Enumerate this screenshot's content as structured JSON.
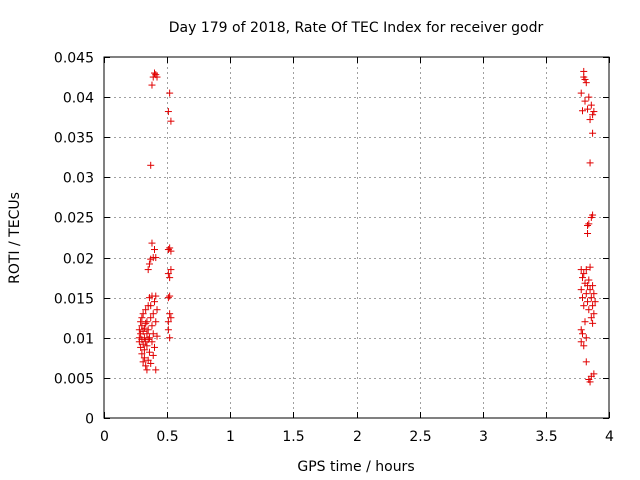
{
  "chart_data": {
    "type": "scatter",
    "title": "Day 179 of 2018, Rate Of TEC Index for receiver godr",
    "xlabel": "GPS time / hours",
    "ylabel": "ROTI / TECUs",
    "xlim": [
      0,
      4
    ],
    "ylim": [
      0,
      0.045
    ],
    "xticks": [
      0,
      0.5,
      1,
      1.5,
      2,
      2.5,
      3,
      3.5,
      4
    ],
    "xtick_labels": [
      "0",
      "0.5",
      "1",
      "1.5",
      "2",
      "2.5",
      "3",
      "3.5",
      "4"
    ],
    "yticks": [
      0,
      0.005,
      0.01,
      0.015,
      0.02,
      0.025,
      0.03,
      0.035,
      0.04,
      0.045
    ],
    "ytick_labels": [
      "0",
      "0.005",
      "0.01",
      "0.015",
      "0.02",
      "0.025",
      "0.03",
      "0.035",
      "0.04",
      "0.045"
    ],
    "grid": true,
    "marker": "+",
    "color": "#e00000",
    "series": [
      {
        "points": [
          [
            0.28,
            0.01
          ],
          [
            0.28,
            0.011
          ],
          [
            0.28,
            0.0095
          ],
          [
            0.29,
            0.012
          ],
          [
            0.29,
            0.0105
          ],
          [
            0.29,
            0.0088
          ],
          [
            0.3,
            0.0115
          ],
          [
            0.3,
            0.0098
          ],
          [
            0.3,
            0.008
          ],
          [
            0.3,
            0.0125
          ],
          [
            0.31,
            0.0108
          ],
          [
            0.31,
            0.0092
          ],
          [
            0.31,
            0.007
          ],
          [
            0.31,
            0.013
          ],
          [
            0.32,
            0.0112
          ],
          [
            0.32,
            0.01
          ],
          [
            0.32,
            0.0085
          ],
          [
            0.32,
            0.0075
          ],
          [
            0.33,
            0.0118
          ],
          [
            0.33,
            0.0135
          ],
          [
            0.33,
            0.0095
          ],
          [
            0.33,
            0.0065
          ],
          [
            0.34,
            0.0105
          ],
          [
            0.34,
            0.012
          ],
          [
            0.34,
            0.009
          ],
          [
            0.34,
            0.006
          ],
          [
            0.35,
            0.011
          ],
          [
            0.35,
            0.014
          ],
          [
            0.35,
            0.0098
          ],
          [
            0.35,
            0.0072
          ],
          [
            0.35,
            0.0185
          ],
          [
            0.36,
            0.015
          ],
          [
            0.36,
            0.01
          ],
          [
            0.36,
            0.0082
          ],
          [
            0.36,
            0.0192
          ],
          [
            0.37,
            0.0125
          ],
          [
            0.37,
            0.014
          ],
          [
            0.37,
            0.0068
          ],
          [
            0.37,
            0.0198
          ],
          [
            0.37,
            0.0315
          ],
          [
            0.38,
            0.0115
          ],
          [
            0.38,
            0.0152
          ],
          [
            0.38,
            0.0095
          ],
          [
            0.38,
            0.0218
          ],
          [
            0.38,
            0.0415
          ],
          [
            0.39,
            0.013
          ],
          [
            0.39,
            0.0105
          ],
          [
            0.39,
            0.0078
          ],
          [
            0.39,
            0.02
          ],
          [
            0.39,
            0.0425
          ],
          [
            0.4,
            0.0145
          ],
          [
            0.4,
            0.0088
          ],
          [
            0.4,
            0.021
          ],
          [
            0.4,
            0.043
          ],
          [
            0.41,
            0.012
          ],
          [
            0.41,
            0.006
          ],
          [
            0.41,
            0.0152
          ],
          [
            0.41,
            0.02
          ],
          [
            0.41,
            0.0428
          ],
          [
            0.42,
            0.0135
          ],
          [
            0.42,
            0.0102
          ],
          [
            0.42,
            0.0425
          ],
          [
            0.51,
            0.021
          ],
          [
            0.51,
            0.018
          ],
          [
            0.51,
            0.015
          ],
          [
            0.51,
            0.012
          ],
          [
            0.51,
            0.011
          ],
          [
            0.51,
            0.0382
          ],
          [
            0.52,
            0.0212
          ],
          [
            0.52,
            0.0175
          ],
          [
            0.52,
            0.0152
          ],
          [
            0.52,
            0.013
          ],
          [
            0.52,
            0.01
          ],
          [
            0.52,
            0.0405
          ],
          [
            0.53,
            0.0208
          ],
          [
            0.53,
            0.0185
          ],
          [
            0.53,
            0.0125
          ],
          [
            0.53,
            0.037
          ],
          [
            3.78,
            0.0185
          ],
          [
            3.78,
            0.016
          ],
          [
            3.78,
            0.011
          ],
          [
            3.78,
            0.0095
          ],
          [
            3.78,
            0.0405
          ],
          [
            3.79,
            0.015
          ],
          [
            3.79,
            0.0175
          ],
          [
            3.79,
            0.0105
          ],
          [
            3.79,
            0.0383
          ],
          [
            3.8,
            0.014
          ],
          [
            3.8,
            0.018
          ],
          [
            3.8,
            0.009
          ],
          [
            3.8,
            0.0432
          ],
          [
            3.8,
            0.0425
          ],
          [
            3.81,
            0.0168
          ],
          [
            3.81,
            0.012
          ],
          [
            3.81,
            0.0422
          ],
          [
            3.81,
            0.0395
          ],
          [
            3.82,
            0.0155
          ],
          [
            3.82,
            0.0185
          ],
          [
            3.82,
            0.01
          ],
          [
            3.82,
            0.007
          ],
          [
            3.82,
            0.0418
          ],
          [
            3.83,
            0.0145
          ],
          [
            3.83,
            0.0165
          ],
          [
            3.83,
            0.024
          ],
          [
            3.83,
            0.023
          ],
          [
            3.83,
            0.0385
          ],
          [
            3.84,
            0.0172
          ],
          [
            3.84,
            0.0135
          ],
          [
            3.84,
            0.0048
          ],
          [
            3.84,
            0.0242
          ],
          [
            3.84,
            0.04
          ],
          [
            3.85,
            0.016
          ],
          [
            3.85,
            0.0188
          ],
          [
            3.85,
            0.0045
          ],
          [
            3.85,
            0.0318
          ],
          [
            3.85,
            0.0372
          ],
          [
            3.86,
            0.015
          ],
          [
            3.86,
            0.0125
          ],
          [
            3.86,
            0.0052
          ],
          [
            3.86,
            0.025
          ],
          [
            3.86,
            0.039
          ],
          [
            3.87,
            0.0165
          ],
          [
            3.87,
            0.014
          ],
          [
            3.87,
            0.0118
          ],
          [
            3.87,
            0.0253
          ],
          [
            3.87,
            0.0378
          ],
          [
            3.87,
            0.0355
          ],
          [
            3.88,
            0.0155
          ],
          [
            3.88,
            0.013
          ],
          [
            3.88,
            0.0055
          ],
          [
            3.88,
            0.0382
          ],
          [
            3.89,
            0.0145
          ]
        ]
      }
    ]
  }
}
